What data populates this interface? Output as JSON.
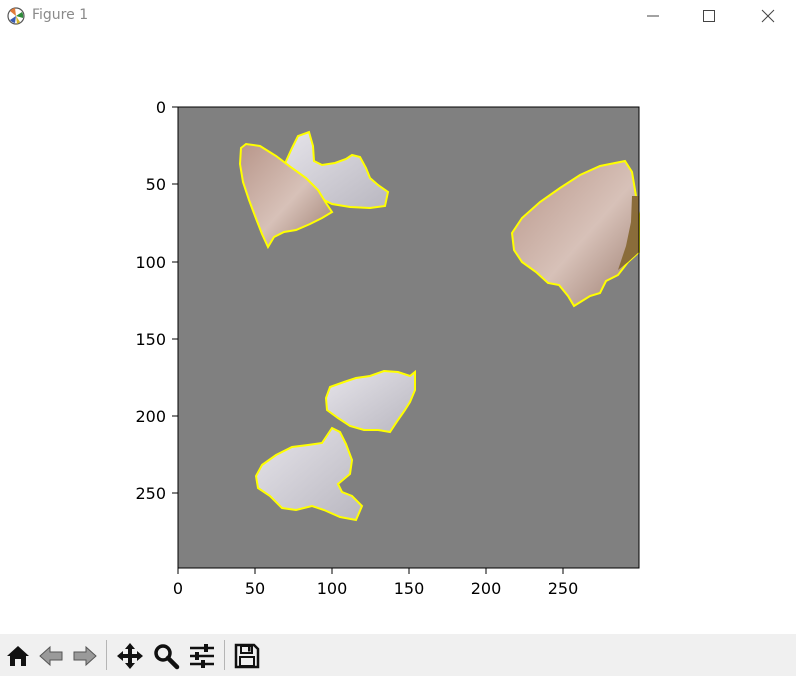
{
  "window": {
    "title": "Figure 1"
  },
  "plot": {
    "x_ticks": [
      "0",
      "50",
      "100",
      "150",
      "200",
      "250"
    ],
    "y_ticks": [
      "0",
      "50",
      "100",
      "150",
      "200",
      "250"
    ],
    "background_color": "#808080",
    "outline_color": "#ffff00"
  },
  "toolbar": {
    "buttons": [
      "home-icon",
      "back-icon",
      "forward-icon",
      "pan-icon",
      "zoom-icon",
      "configure-subplots-icon",
      "save-icon"
    ]
  }
}
